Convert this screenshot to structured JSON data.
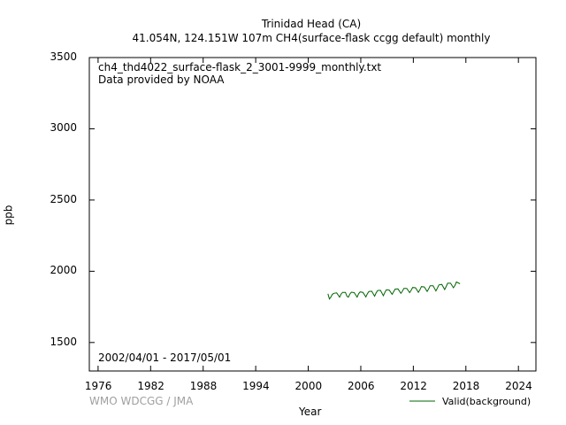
{
  "chart_data": {
    "type": "line",
    "title_line1": "Trinidad Head (CA)",
    "title_line2": "41.054N, 124.151W 107m     CH4(surface-flask ccgg default) monthly",
    "file_label": "ch4_thd4022_surface-flask_2_3001-9999_monthly.txt",
    "provider": "Data provided by NOAA",
    "period": "2002/04/01 - 2017/05/01",
    "credit": "WMO WDCGG / JMA",
    "xlabel": "Year",
    "ylabel": "ppb",
    "xlim": [
      1975,
      2026
    ],
    "ylim": [
      1300,
      3500
    ],
    "xticks": [
      "1976",
      "1982",
      "1988",
      "1994",
      "2000",
      "2006",
      "2012",
      "2018",
      "2024"
    ],
    "yticks": [
      "1500",
      "2000",
      "2500",
      "3000",
      "3500"
    ],
    "grid": false,
    "legend_position": "bottom-right",
    "series": [
      {
        "name": "Valid(background)",
        "color": "#006400",
        "x": [
          2002.25,
          2002.42,
          2002.58,
          2002.75,
          2002.92,
          2003.25,
          2003.58,
          2003.75,
          2003.92,
          2004.25,
          2004.42,
          2004.58,
          2004.75,
          2004.92,
          2005.25,
          2005.58,
          2005.75,
          2005.92,
          2006.25,
          2006.58,
          2006.75,
          2006.92,
          2007.25,
          2007.58,
          2007.75,
          2007.92,
          2008.25,
          2008.58,
          2008.75,
          2008.92,
          2009.25,
          2009.58,
          2009.75,
          2009.92,
          2010.25,
          2010.58,
          2010.75,
          2010.92,
          2011.25,
          2011.58,
          2011.75,
          2011.92,
          2012.25,
          2012.58,
          2012.75,
          2012.92,
          2013.25,
          2013.58,
          2013.75,
          2013.92,
          2014.25,
          2014.58,
          2014.75,
          2014.92,
          2015.25,
          2015.58,
          2015.75,
          2015.92,
          2016.25,
          2016.58,
          2016.75,
          2016.92,
          2017.33
        ],
        "y": [
          1842,
          1805,
          1818,
          1838,
          1845,
          1848,
          1818,
          1840,
          1852,
          1852,
          1825,
          1818,
          1840,
          1853,
          1850,
          1818,
          1842,
          1855,
          1852,
          1820,
          1842,
          1858,
          1860,
          1825,
          1848,
          1865,
          1866,
          1828,
          1852,
          1870,
          1868,
          1838,
          1856,
          1875,
          1876,
          1845,
          1860,
          1880,
          1880,
          1850,
          1866,
          1886,
          1884,
          1852,
          1870,
          1892,
          1890,
          1858,
          1876,
          1898,
          1898,
          1862,
          1882,
          1904,
          1908,
          1872,
          1893,
          1916,
          1916,
          1884,
          1900,
          1925,
          1912
        ]
      }
    ]
  }
}
